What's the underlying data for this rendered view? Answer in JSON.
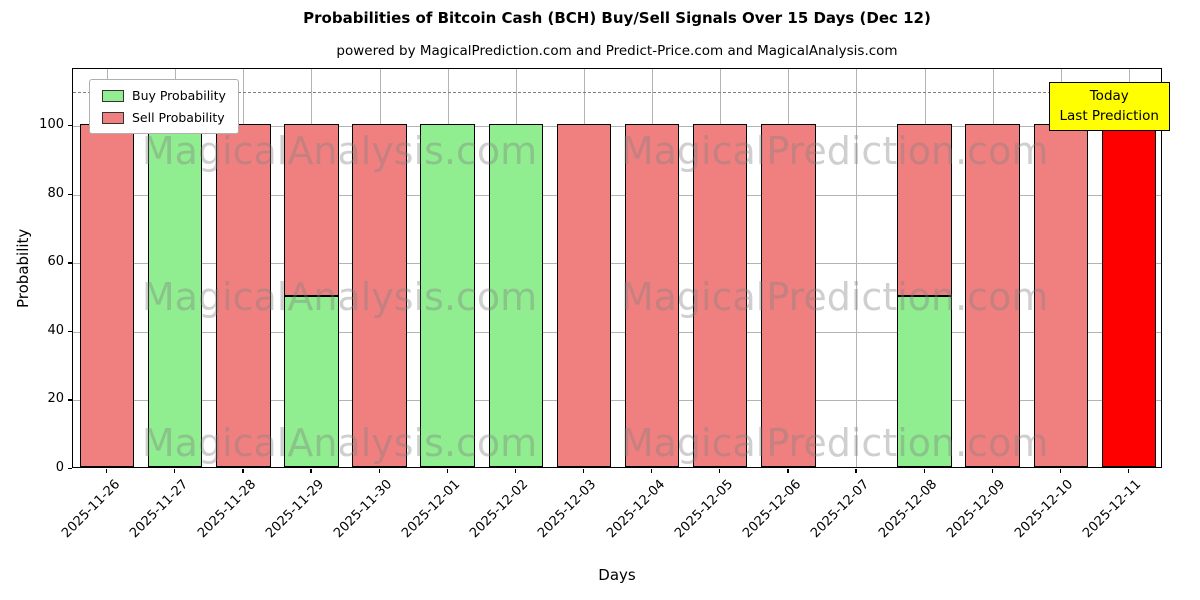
{
  "title": "Probabilities of Bitcoin Cash (BCH) Buy/Sell Signals Over 15 Days (Dec 12)",
  "subtitle": "powered by MagicalPrediction.com and Predict-Price.com and MagicalAnalysis.com",
  "chart_data": {
    "type": "bar",
    "stacked": true,
    "title": "Probabilities of Bitcoin Cash (BCH) Buy/Sell Signals Over 15 Days (Dec 12)",
    "xlabel": "Days",
    "ylabel": "Probability",
    "ylim": [
      0,
      116.7
    ],
    "yticks": [
      0,
      20,
      40,
      60,
      80,
      100
    ],
    "grid": true,
    "legend_position": "upper left",
    "categories": [
      "2025-11-26",
      "2025-11-27",
      "2025-11-28",
      "2025-11-29",
      "2025-11-30",
      "2025-12-01",
      "2025-12-02",
      "2025-12-03",
      "2025-12-04",
      "2025-12-05",
      "2025-12-06",
      "2025-12-07",
      "2025-12-08",
      "2025-12-09",
      "2025-12-10",
      "2025-12-11"
    ],
    "series": [
      {
        "name": "Buy Probability",
        "color": "#90ee90",
        "values": [
          0,
          100,
          0,
          50,
          0,
          100,
          100,
          0,
          0,
          0,
          0,
          0,
          50,
          0,
          0,
          0
        ]
      },
      {
        "name": "Sell Probability",
        "color": "#f08080",
        "values": [
          100,
          0,
          100,
          50,
          100,
          0,
          0,
          100,
          100,
          100,
          100,
          0,
          50,
          100,
          100,
          100
        ]
      }
    ],
    "today_bar": {
      "category": "2025-12-11",
      "color": "#ff0000"
    },
    "dashed_line_y": 110
  },
  "annotation": {
    "line1": "Today",
    "line2": "Last Prediction",
    "bg": "#ffff00"
  },
  "watermarks": {
    "left": "MagicalAnalysis.com",
    "right": "MagicalPrediction.com",
    "rows": 3
  },
  "colors": {
    "grid": "#b3b3b3",
    "dashed_line": "#7f7f7f",
    "bar_edge": "#000000",
    "watermark": "rgba(128,128,128,0.38)",
    "legend_border": "#b0b0b0"
  }
}
